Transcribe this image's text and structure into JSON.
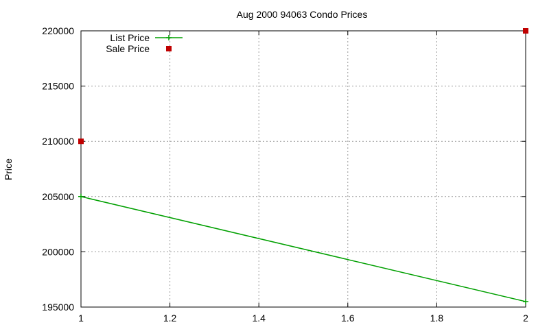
{
  "chart_data": {
    "type": "line",
    "title": "Aug 2000 94063 Condo Prices",
    "xlabel": "",
    "ylabel": "Price",
    "xlim": [
      1,
      2
    ],
    "ylim": [
      195000,
      220000
    ],
    "x_ticks": [
      1,
      1.2,
      1.4,
      1.6,
      1.8,
      2
    ],
    "x_tick_labels": [
      "1",
      "1.2",
      "1.4",
      "1.6",
      "1.8",
      "2"
    ],
    "y_ticks": [
      195000,
      200000,
      205000,
      210000,
      215000,
      220000
    ],
    "y_tick_labels": [
      "195000",
      "200000",
      "205000",
      "210000",
      "215000",
      "220000"
    ],
    "grid": true,
    "legend_position": "top-left",
    "series": [
      {
        "name": "List Price",
        "style": "line",
        "color": "#00a000",
        "points": [
          {
            "x": 1,
            "y": 205000
          },
          {
            "x": 2,
            "y": 195500
          }
        ]
      },
      {
        "name": "Sale Price",
        "style": "points",
        "marker": "square",
        "color": "#c00000",
        "points": [
          {
            "x": 1,
            "y": 210000
          },
          {
            "x": 2,
            "y": 220000
          }
        ]
      }
    ]
  }
}
